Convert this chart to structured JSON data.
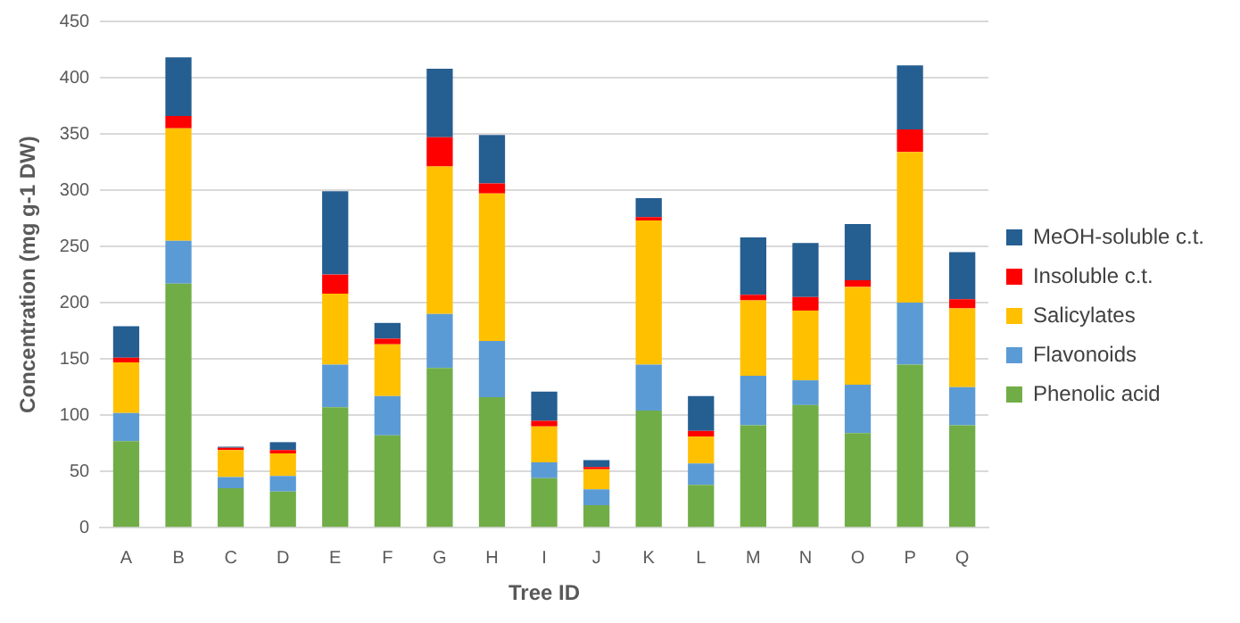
{
  "chart_data": {
    "type": "bar",
    "stacked": true,
    "xlabel": "Tree ID",
    "ylabel": "Concentration (mg g-1 DW)",
    "categories": [
      "A",
      "B",
      "C",
      "D",
      "E",
      "F",
      "G",
      "H",
      "I",
      "J",
      "K",
      "L",
      "M",
      "N",
      "O",
      "P",
      "Q"
    ],
    "series": [
      {
        "name": "Phenolic acid",
        "color": "#70ad47",
        "values": [
          77,
          217,
          35,
          32,
          107,
          82,
          142,
          116,
          44,
          20,
          104,
          38,
          91,
          109,
          84,
          145,
          91
        ]
      },
      {
        "name": "Flavonoids",
        "color": "#5b9bd5",
        "values": [
          25,
          38,
          10,
          14,
          38,
          35,
          48,
          50,
          14,
          14,
          41,
          19,
          44,
          22,
          43,
          55,
          34
        ]
      },
      {
        "name": "Salicylates",
        "color": "#ffc000",
        "values": [
          45,
          100,
          24,
          20,
          63,
          46,
          131,
          131,
          32,
          18,
          128,
          24,
          67,
          62,
          87,
          134,
          70
        ]
      },
      {
        "name": "Insoluble c.t.",
        "color": "#ff0000",
        "values": [
          4,
          11,
          2,
          3,
          17,
          5,
          26,
          9,
          5,
          2,
          3,
          5,
          5,
          12,
          6,
          20,
          8
        ]
      },
      {
        "name": "MeOH-soluble c.t.",
        "color": "#255e91",
        "values": [
          28,
          52,
          1,
          7,
          74,
          14,
          61,
          43,
          26,
          6,
          17,
          31,
          51,
          48,
          50,
          57,
          42
        ]
      }
    ],
    "ylim": [
      0,
      450
    ],
    "yticks": [
      0,
      50,
      100,
      150,
      200,
      250,
      300,
      350,
      400,
      450
    ],
    "grid": "y",
    "legend": "right"
  }
}
